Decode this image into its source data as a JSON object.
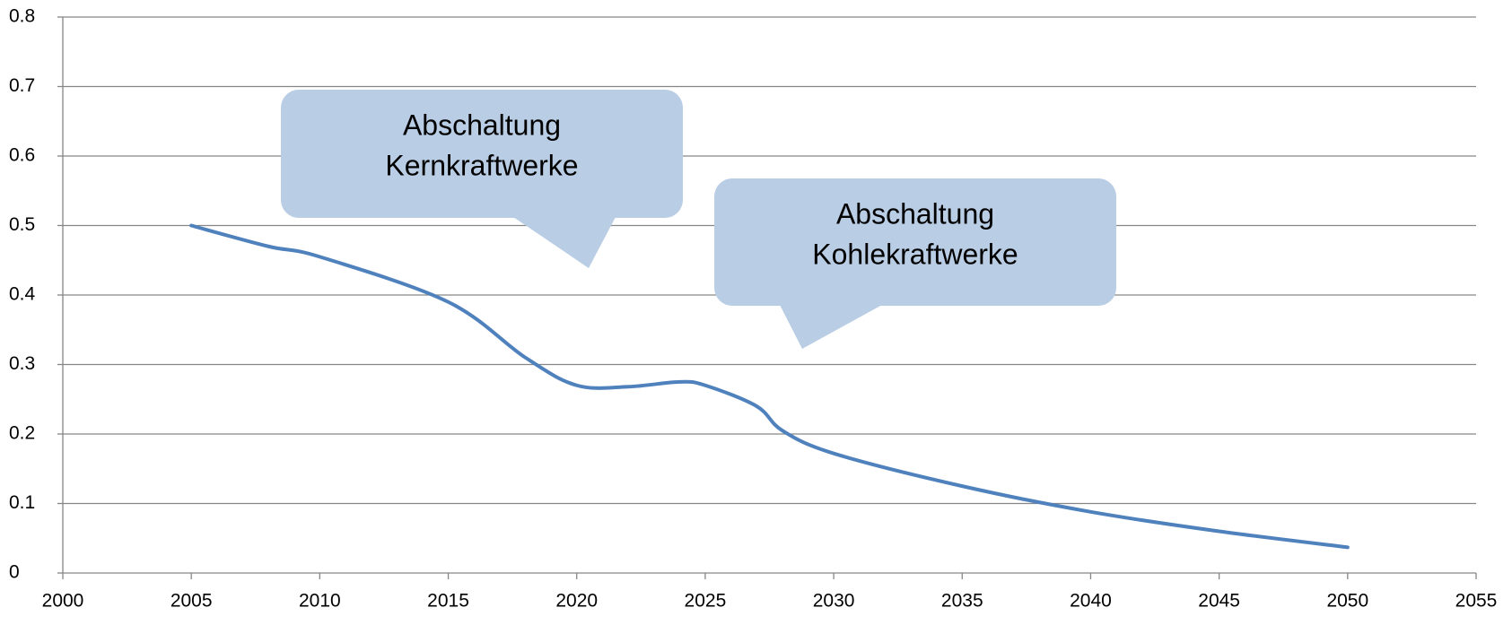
{
  "chart_data": {
    "type": "line",
    "x": [
      2005,
      2008,
      2010,
      2015,
      2018,
      2020,
      2022,
      2024,
      2025,
      2027,
      2028,
      2030,
      2035,
      2040,
      2045,
      2050
    ],
    "series": [
      {
        "color": "#4f81bd",
        "values": [
          0.5,
          0.47,
          0.455,
          0.39,
          0.31,
          0.27,
          0.268,
          0.275,
          0.27,
          0.24,
          0.205,
          0.172,
          0.125,
          0.088,
          0.06,
          0.037
        ]
      }
    ],
    "xlim": [
      2000,
      2055
    ],
    "xticks": [
      2000,
      2005,
      2010,
      2015,
      2020,
      2025,
      2030,
      2035,
      2040,
      2045,
      2050,
      2055
    ],
    "ylim": [
      0,
      0.8
    ],
    "yticks": [
      0,
      0.1,
      0.2,
      0.3,
      0.4,
      0.5,
      0.6,
      0.7,
      0.8
    ],
    "grid": true,
    "annotations": [
      {
        "lines": [
          "Abschaltung",
          "Kernkraftwerke"
        ]
      },
      {
        "lines": [
          "Abschaltung",
          "Kohlekraftwerke"
        ]
      }
    ]
  }
}
